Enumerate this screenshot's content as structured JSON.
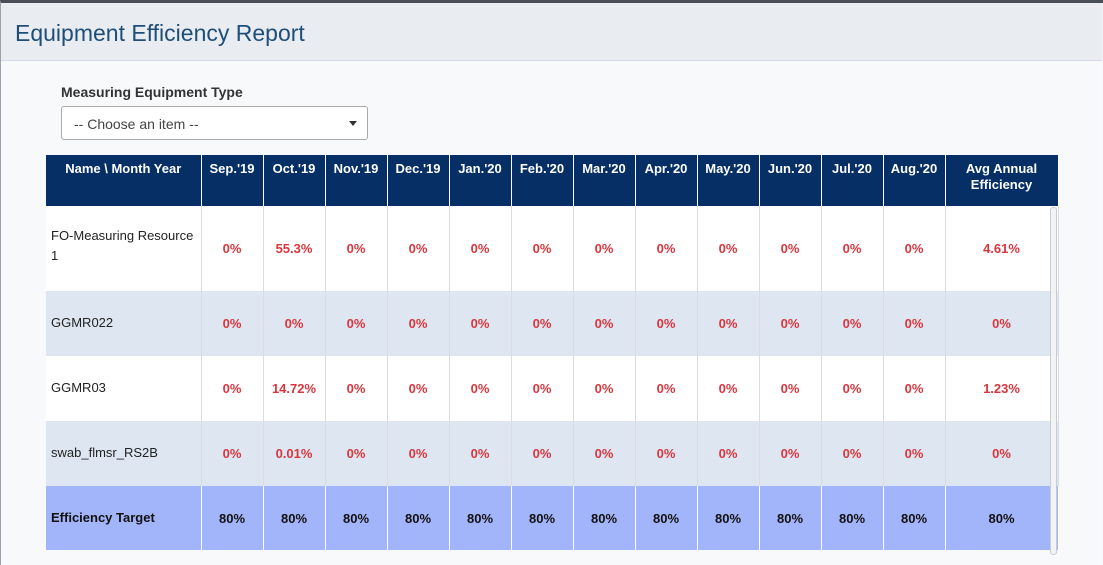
{
  "page": {
    "title": "Equipment Efficiency Report"
  },
  "filter": {
    "label": "Measuring Equipment Type",
    "selected": "-- Choose an item --"
  },
  "table": {
    "name_header": "Name \\ Month Year",
    "months": [
      "Sep.'19",
      "Oct.'19",
      "Nov.'19",
      "Dec.'19",
      "Jan.'20",
      "Feb.'20",
      "Mar.'20",
      "Apr.'20",
      "May.'20",
      "Jun.'20",
      "Jul.'20",
      "Aug.'20"
    ],
    "avg_header": "Avg Annual Efficiency",
    "rows": [
      {
        "name": "FO-Measuring Resource 1",
        "values": [
          "0%",
          "55.3%",
          "0%",
          "0%",
          "0%",
          "0%",
          "0%",
          "0%",
          "0%",
          "0%",
          "0%",
          "0%"
        ],
        "avg": "4.61%"
      },
      {
        "name": "GGMR022",
        "values": [
          "0%",
          "0%",
          "0%",
          "0%",
          "0%",
          "0%",
          "0%",
          "0%",
          "0%",
          "0%",
          "0%",
          "0%"
        ],
        "avg": "0%"
      },
      {
        "name": "GGMR03",
        "values": [
          "0%",
          "14.72%",
          "0%",
          "0%",
          "0%",
          "0%",
          "0%",
          "0%",
          "0%",
          "0%",
          "0%",
          "0%"
        ],
        "avg": "1.23%"
      },
      {
        "name": "swab_flmsr_RS2B",
        "values": [
          "0%",
          "0.01%",
          "0%",
          "0%",
          "0%",
          "0%",
          "0%",
          "0%",
          "0%",
          "0%",
          "0%",
          "0%"
        ],
        "avg": "0%"
      }
    ],
    "target": {
      "name": "Efficiency Target",
      "values": [
        "80%",
        "80%",
        "80%",
        "80%",
        "80%",
        "80%",
        "80%",
        "80%",
        "80%",
        "80%",
        "80%",
        "80%"
      ],
      "avg": "80%"
    }
  },
  "colors": {
    "header_bg": "#062f66",
    "value_red": "#d9363e",
    "target_bg": "#a3b5fa",
    "alt_row": "#dde6f1"
  }
}
